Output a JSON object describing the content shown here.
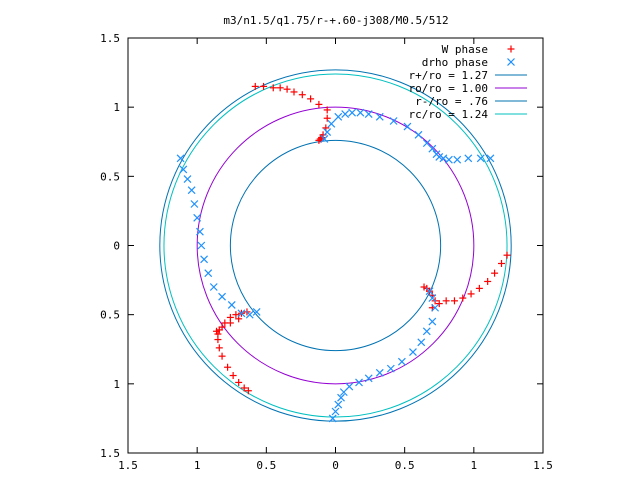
{
  "chart_data": {
    "type": "scatter",
    "title": "m3/n1.5/q1.75/r-+.60-j308/M0.5/512",
    "xlim": [
      -1.5,
      1.5
    ],
    "ylim": [
      -1.5,
      1.5
    ],
    "x_ticks": [
      -1.5,
      -1,
      -0.5,
      0,
      0.5,
      1,
      1.5
    ],
    "y_ticks": [
      -1.5,
      -1,
      -0.5,
      0,
      0.5,
      1,
      1.5
    ],
    "x_tick_labels": [
      "1.5",
      "1",
      "0.5",
      "0",
      "0.5",
      "1",
      "1.5"
    ],
    "y_tick_labels": [
      "1.5",
      "1",
      "0.5",
      "0",
      "0.5",
      "1",
      "1.5"
    ],
    "grid": false,
    "legend_position": "top-right",
    "circles": [
      {
        "name": "r+/ro = 1.27",
        "radius": 1.27,
        "color": "#0072b2"
      },
      {
        "name": "ro/ro = 1.00",
        "radius": 1.0,
        "color": "#9400d3"
      },
      {
        "name": "r-/ro = .76",
        "radius": 0.76,
        "color": "#0072b2"
      },
      {
        "name": "rc/ro = 1.24",
        "radius": 1.24,
        "color": "#00c0c0"
      }
    ],
    "series": [
      {
        "name": "W phase",
        "marker": "plus",
        "color": "#ff0000",
        "x": [
          -0.06,
          -0.12,
          -0.18,
          -0.24,
          -0.3,
          -0.35,
          -0.4,
          -0.45,
          -0.52,
          -0.58,
          -0.06,
          -0.07,
          -0.09,
          -0.1,
          -0.11,
          -0.12,
          0.7,
          0.75,
          0.8,
          0.86,
          0.92,
          0.98,
          1.04,
          1.1,
          1.15,
          1.2,
          1.24,
          0.72,
          0.7,
          0.68,
          0.66,
          0.64,
          -0.63,
          -0.66,
          -0.7,
          -0.74,
          -0.78,
          -0.82,
          -0.84,
          -0.85,
          -0.85,
          -0.84,
          -0.8,
          -0.76,
          -0.72,
          -0.68,
          -0.64,
          -0.7,
          -0.76,
          -0.82,
          -0.86
        ],
        "y": [
          0.98,
          1.02,
          1.06,
          1.09,
          1.11,
          1.13,
          1.14,
          1.14,
          1.15,
          1.15,
          0.92,
          0.85,
          0.8,
          0.78,
          0.77,
          0.76,
          -0.45,
          -0.42,
          -0.4,
          -0.4,
          -0.38,
          -0.35,
          -0.31,
          -0.26,
          -0.2,
          -0.13,
          -0.07,
          -0.4,
          -0.36,
          -0.33,
          -0.31,
          -0.3,
          -1.05,
          -1.03,
          -0.99,
          -0.94,
          -0.88,
          -0.8,
          -0.74,
          -0.68,
          -0.64,
          -0.61,
          -0.56,
          -0.52,
          -0.5,
          -0.49,
          -0.48,
          -0.53,
          -0.56,
          -0.59,
          -0.62
        ]
      },
      {
        "name": "drho phase",
        "marker": "cross",
        "color": "#1e90ff",
        "x": [
          -0.08,
          -0.06,
          -0.03,
          0.02,
          0.07,
          0.12,
          0.18,
          0.24,
          0.32,
          0.42,
          0.52,
          0.6,
          0.66,
          0.7,
          0.73,
          0.75,
          0.78,
          0.82,
          0.88,
          0.96,
          1.05,
          1.12,
          -0.57,
          -0.62,
          -0.68,
          -0.75,
          -0.82,
          -0.88,
          -0.92,
          -0.95,
          -0.97,
          -0.98,
          -1.0,
          -1.02,
          -1.04,
          -1.07,
          -1.1,
          -1.12,
          0.68,
          0.7,
          0.72,
          0.7,
          0.66,
          0.62,
          0.56,
          0.48,
          0.4,
          0.32,
          0.24,
          0.17,
          0.1,
          0.06,
          0.04,
          0.02,
          0.0,
          -0.02
        ],
        "y": [
          0.77,
          0.82,
          0.88,
          0.93,
          0.95,
          0.96,
          0.96,
          0.95,
          0.93,
          0.9,
          0.86,
          0.8,
          0.74,
          0.7,
          0.66,
          0.64,
          0.63,
          0.62,
          0.62,
          0.63,
          0.63,
          0.63,
          -0.48,
          -0.5,
          -0.49,
          -0.43,
          -0.37,
          -0.3,
          -0.2,
          -0.1,
          0.0,
          0.1,
          0.2,
          0.3,
          0.4,
          0.48,
          0.55,
          0.63,
          -0.33,
          -0.38,
          -0.45,
          -0.55,
          -0.62,
          -0.7,
          -0.77,
          -0.84,
          -0.89,
          -0.92,
          -0.96,
          -0.99,
          -1.02,
          -1.06,
          -1.1,
          -1.15,
          -1.2,
          -1.25
        ]
      }
    ]
  }
}
